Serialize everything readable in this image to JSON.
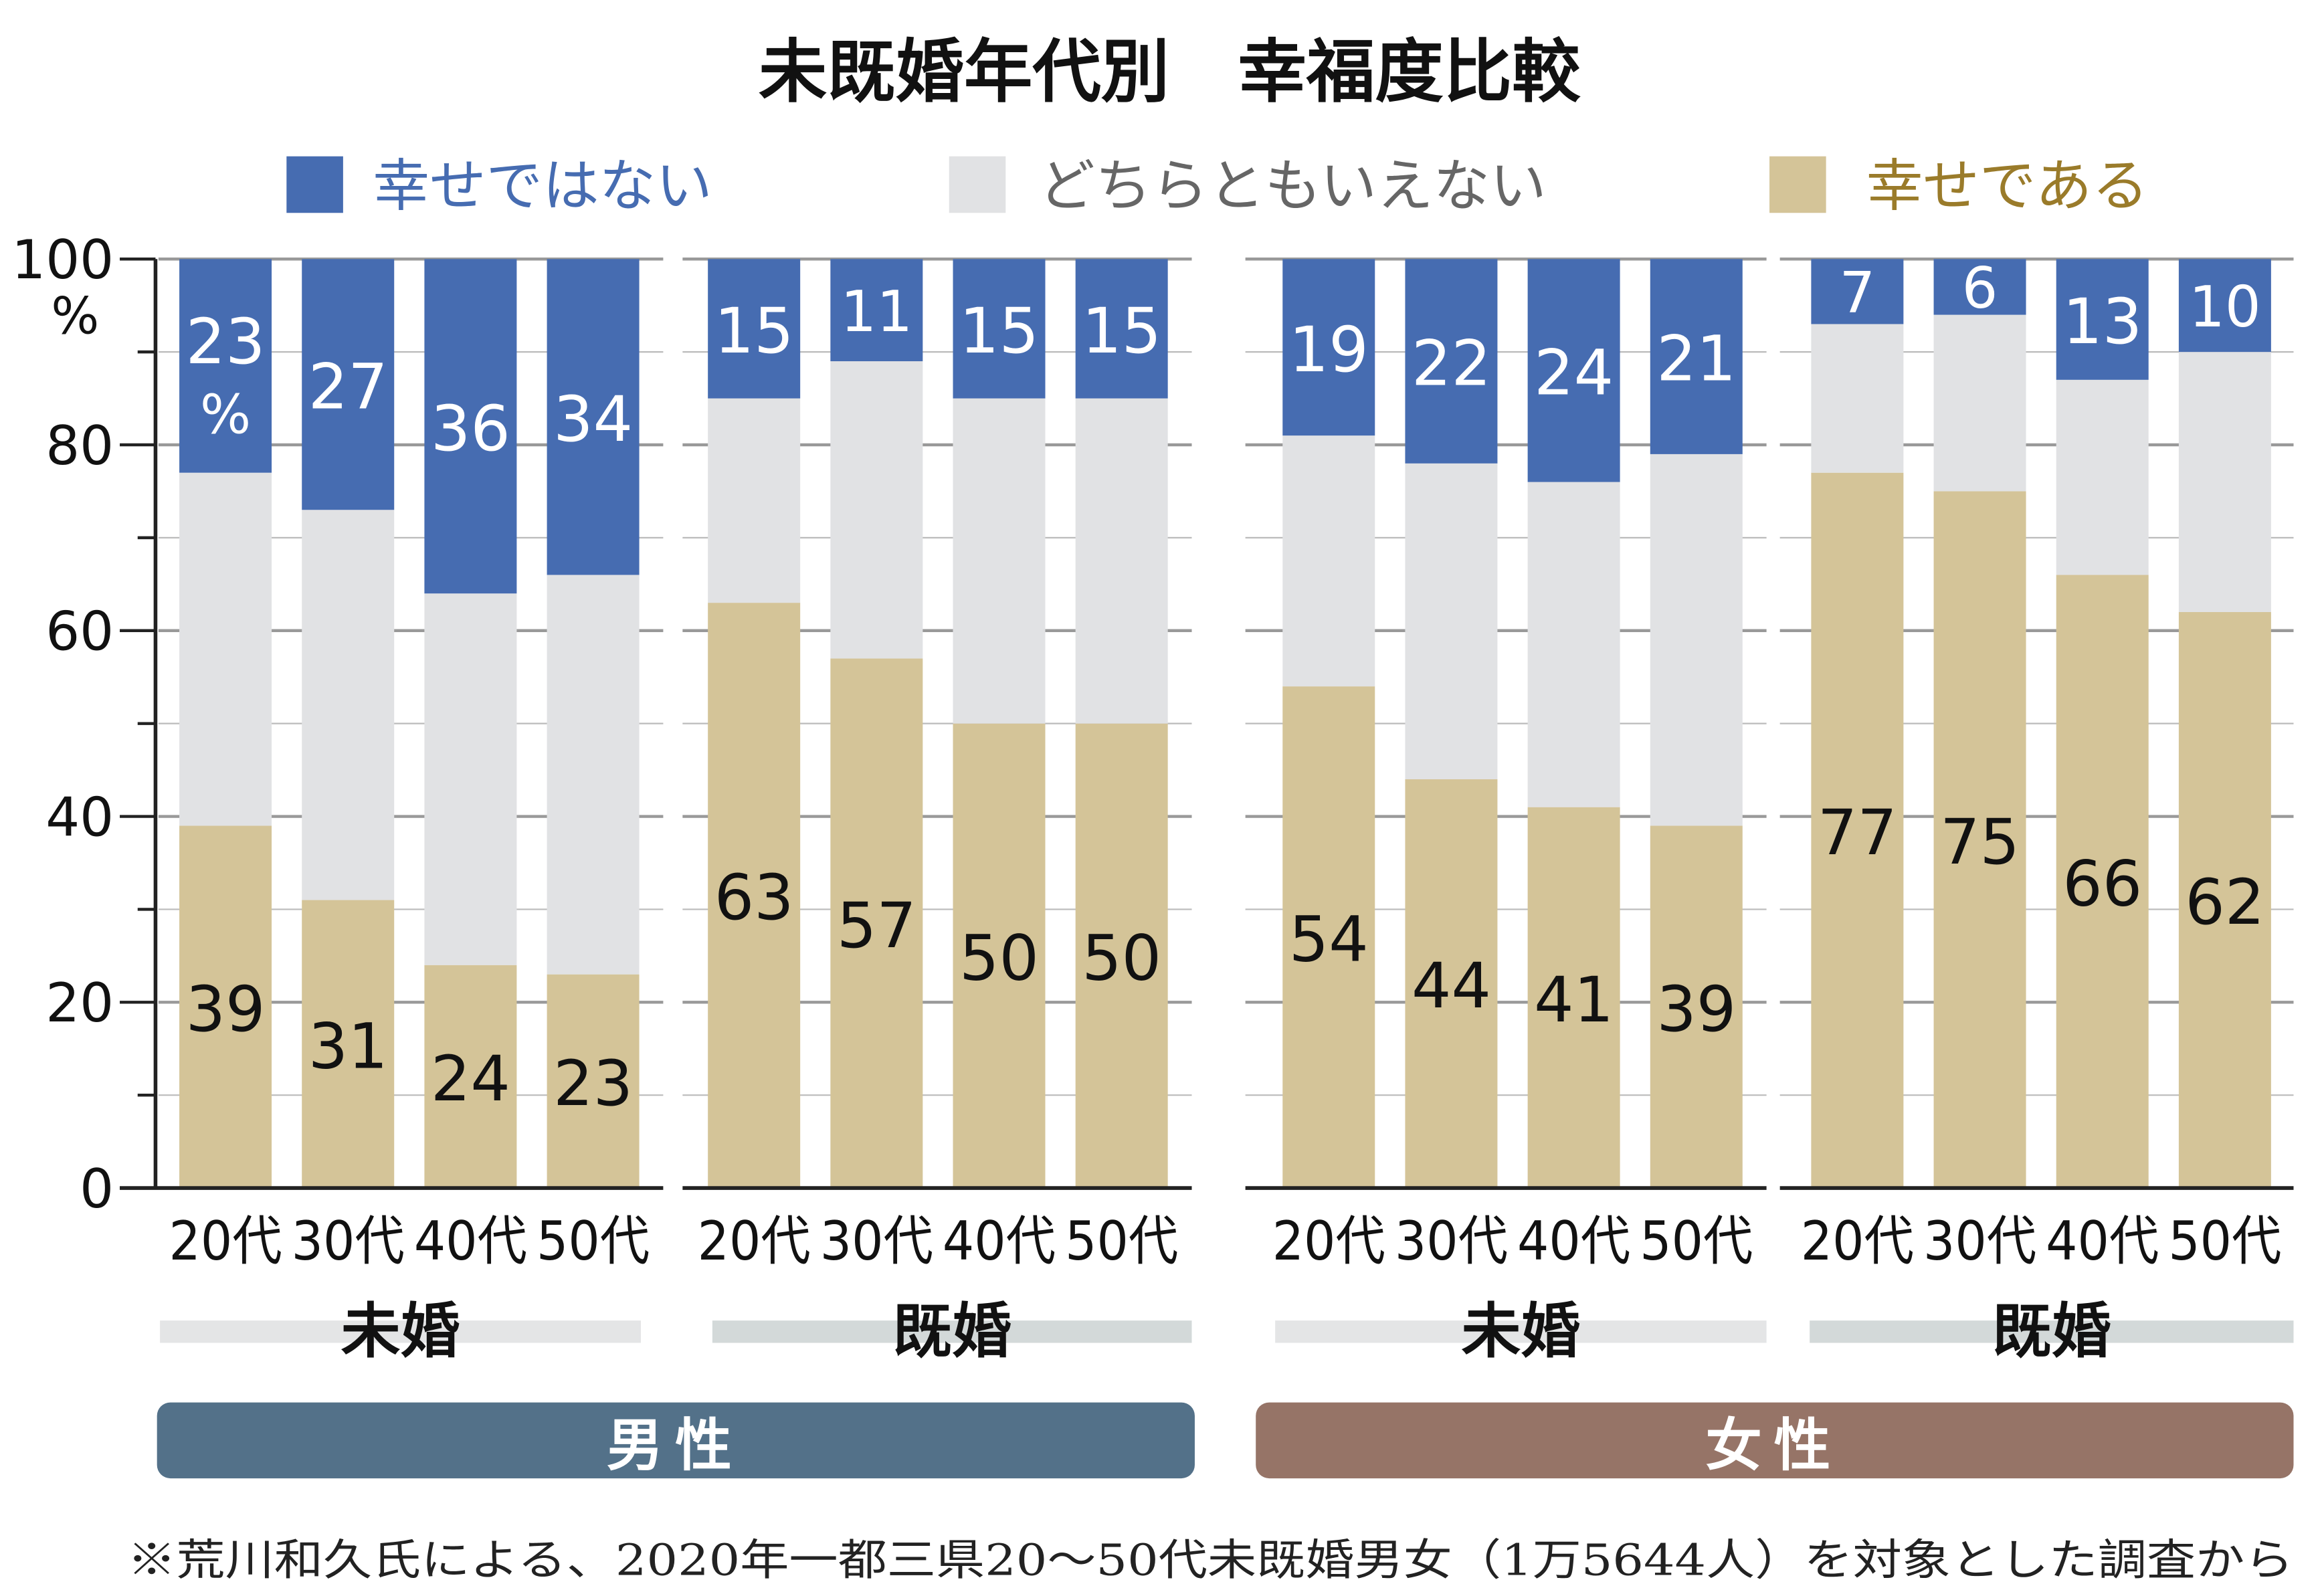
{
  "colors": {
    "not_happy": "#466cb1",
    "neutral": "#e1e2e4",
    "happy": "#d4c498",
    "male": "#537189",
    "female": "#967467",
    "legend_not_happy_text": "#466cb1",
    "legend_neutral_text": "#666666",
    "legend_happy_text": "#9a7b2a"
  },
  "chart_data": {
    "type": "bar",
    "stacked": true,
    "title": "未既婚年代別　幸福度比較",
    "ylim": [
      0,
      100
    ],
    "yticks": [
      "0",
      "20",
      "40",
      "60",
      "80",
      "100"
    ],
    "yunit": "%",
    "grid": true,
    "legend_position": "top",
    "legend": [
      "幸せではない",
      "どちらともいえない",
      "幸せである"
    ],
    "first_label_suffix": "%",
    "groups": [
      {
        "gender": "男性",
        "status": "未婚",
        "categories": [
          "20代",
          "30代",
          "40代",
          "50代"
        ],
        "not_happy": [
          23,
          27,
          36,
          34
        ],
        "neutral": [
          38,
          42,
          40,
          43
        ],
        "happy": [
          39,
          31,
          24,
          23
        ]
      },
      {
        "gender": "男性",
        "status": "既婚",
        "categories": [
          "20代",
          "30代",
          "40代",
          "50代"
        ],
        "not_happy": [
          15,
          11,
          15,
          15
        ],
        "neutral": [
          22,
          32,
          35,
          35
        ],
        "happy": [
          63,
          57,
          50,
          50
        ]
      },
      {
        "gender": "女性",
        "status": "未婚",
        "categories": [
          "20代",
          "30代",
          "40代",
          "50代"
        ],
        "not_happy": [
          19,
          22,
          24,
          21
        ],
        "neutral": [
          27,
          34,
          35,
          40
        ],
        "happy": [
          54,
          44,
          41,
          39
        ]
      },
      {
        "gender": "女性",
        "status": "既婚",
        "categories": [
          "20代",
          "30代",
          "40代",
          "50代"
        ],
        "not_happy": [
          7,
          6,
          13,
          10
        ],
        "neutral": [
          16,
          19,
          21,
          28
        ],
        "happy": [
          77,
          75,
          66,
          62
        ]
      }
    ],
    "gender_labels": [
      "男性",
      "女性"
    ]
  },
  "footnote": "※荒川和久氏による、2020年一都三県20～50代未既婚男女（1万5644人）を対象とした調査から"
}
